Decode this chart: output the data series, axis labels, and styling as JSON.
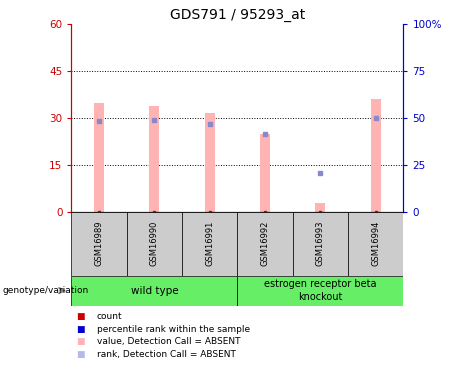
{
  "title": "GDS791 / 95293_at",
  "samples": [
    "GSM16989",
    "GSM16990",
    "GSM16991",
    "GSM16992",
    "GSM16993",
    "GSM16994"
  ],
  "pink_bar_values": [
    35,
    34,
    31.5,
    25,
    3,
    36
  ],
  "blue_dot_values": [
    29,
    29.5,
    28,
    25,
    12.5,
    30
  ],
  "ylim_left": [
    0,
    60
  ],
  "ylim_right": [
    0,
    100
  ],
  "yticks_left": [
    0,
    15,
    30,
    45,
    60
  ],
  "ytick_labels_left": [
    "0",
    "15",
    "30",
    "45",
    "60"
  ],
  "yticks_right": [
    0,
    25,
    50,
    75,
    100
  ],
  "ytick_labels_right": [
    "0",
    "25",
    "50",
    "75",
    "100%"
  ],
  "left_axis_color": "#cc0000",
  "right_axis_color": "#0000cc",
  "pink_bar_color": "#ffb3b3",
  "blue_dot_color": "#8888cc",
  "red_dot_color": "#cc0000",
  "sample_box_color": "#cccccc",
  "wt_box_color": "#66ee66",
  "ko_box_color": "#66ee66",
  "legend_colors": [
    "#cc0000",
    "#0000cc",
    "#ffb3b3",
    "#b8b8e8"
  ],
  "legend_labels": [
    "count",
    "percentile rank within the sample",
    "value, Detection Call = ABSENT",
    "rank, Detection Call = ABSENT"
  ],
  "genotype_label": "genotype/variation",
  "bar_width": 0.18
}
